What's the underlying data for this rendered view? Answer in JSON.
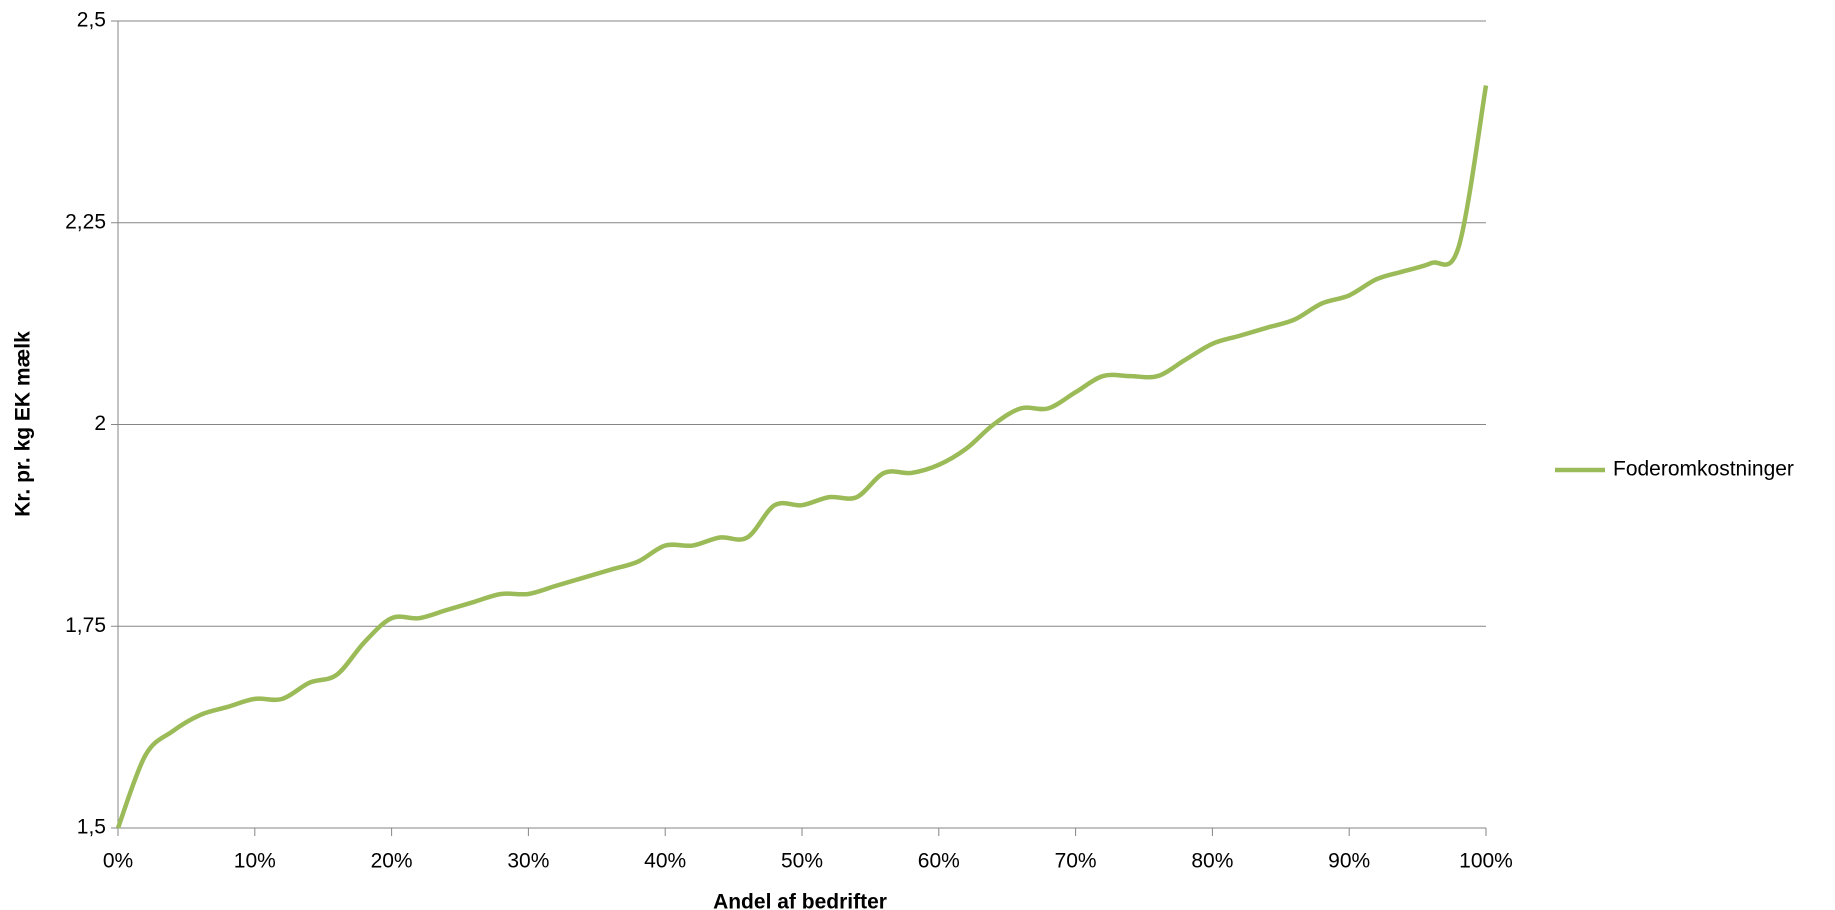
{
  "chart_data": {
    "type": "line",
    "x_label": "Andel af bedrifter",
    "y_label": "Kr. pr. kg EK mælk",
    "x": [
      0,
      2,
      4,
      6,
      8,
      10,
      12,
      14,
      16,
      18,
      20,
      22,
      24,
      26,
      28,
      30,
      32,
      34,
      36,
      38,
      40,
      42,
      44,
      46,
      48,
      50,
      52,
      54,
      56,
      58,
      60,
      62,
      64,
      66,
      68,
      70,
      72,
      74,
      76,
      78,
      80,
      82,
      84,
      86,
      88,
      90,
      92,
      94,
      96,
      98,
      100
    ],
    "series": [
      {
        "name": "Foderomkostninger",
        "color": "#9bbb59",
        "values": [
          1.5,
          1.59,
          1.62,
          1.64,
          1.65,
          1.66,
          1.66,
          1.68,
          1.69,
          1.73,
          1.76,
          1.76,
          1.77,
          1.78,
          1.79,
          1.79,
          1.8,
          1.81,
          1.82,
          1.83,
          1.85,
          1.85,
          1.86,
          1.86,
          1.9,
          1.9,
          1.91,
          1.91,
          1.94,
          1.94,
          1.95,
          1.97,
          2.0,
          2.02,
          2.02,
          2.04,
          2.06,
          2.06,
          2.06,
          2.08,
          2.1,
          2.11,
          2.12,
          2.13,
          2.15,
          2.16,
          2.18,
          2.19,
          2.2,
          2.22,
          2.42
        ]
      }
    ],
    "xlim": [
      0,
      100
    ],
    "xticks": [
      {
        "value": 0,
        "label": "0%"
      },
      {
        "value": 10,
        "label": "10%"
      },
      {
        "value": 20,
        "label": "20%"
      },
      {
        "value": 30,
        "label": "30%"
      },
      {
        "value": 40,
        "label": "40%"
      },
      {
        "value": 50,
        "label": "50%"
      },
      {
        "value": 60,
        "label": "60%"
      },
      {
        "value": 70,
        "label": "70%"
      },
      {
        "value": 80,
        "label": "80%"
      },
      {
        "value": 90,
        "label": "90%"
      },
      {
        "value": 100,
        "label": "100%"
      }
    ],
    "ylim": [
      1.5,
      2.5
    ],
    "yticks": [
      {
        "value": 1.5,
        "label": "1,5"
      },
      {
        "value": 1.75,
        "label": "1,75"
      },
      2,
      {
        "value": 2.25,
        "label": "2,25"
      },
      {
        "value": 2.5,
        "label": "2,5"
      }
    ],
    "grid": true,
    "legend": "right"
  }
}
